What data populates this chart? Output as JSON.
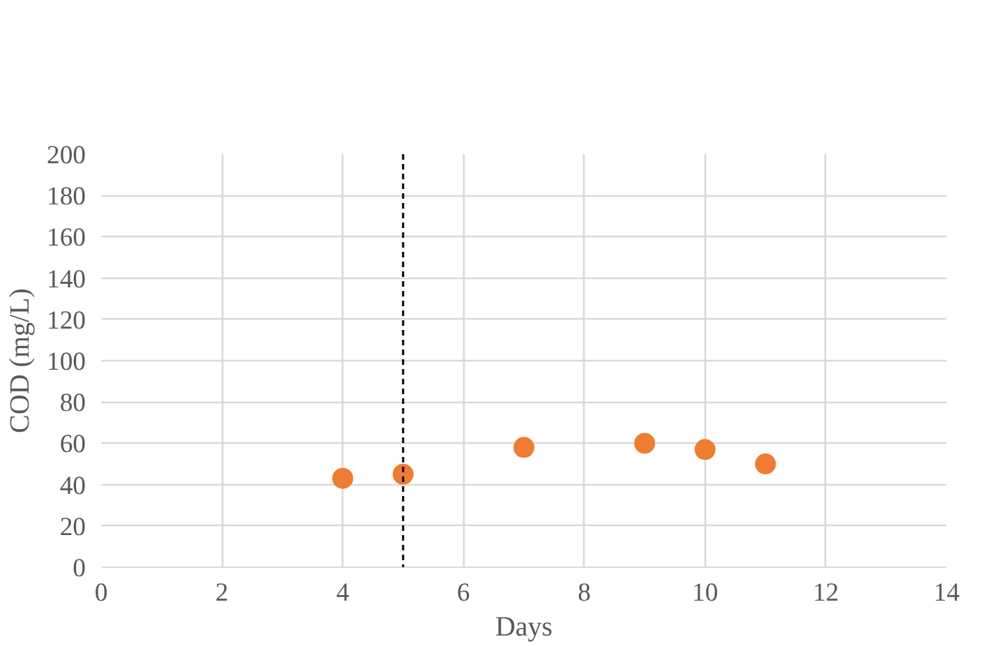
{
  "chart_data": {
    "type": "scatter",
    "xlabel": "Days",
    "ylabel": "COD (mg/L)",
    "x": [
      4,
      5,
      7,
      9,
      10,
      11
    ],
    "series": [
      {
        "color": "#ed7d31",
        "values": [
          43,
          45,
          58,
          60,
          57,
          50
        ]
      }
    ],
    "xlim": [
      0,
      14
    ],
    "xticks": [
      0,
      2,
      4,
      6,
      8,
      10,
      12,
      14
    ],
    "ylim": [
      0,
      200
    ],
    "yticks": [
      0,
      20,
      40,
      60,
      80,
      100,
      120,
      140,
      160,
      180,
      200
    ],
    "grid": true,
    "marker": "circle",
    "ref_lines": [
      {
        "axis": "x",
        "value": 5,
        "color": "#000000",
        "line_style": "dashed"
      }
    ]
  }
}
